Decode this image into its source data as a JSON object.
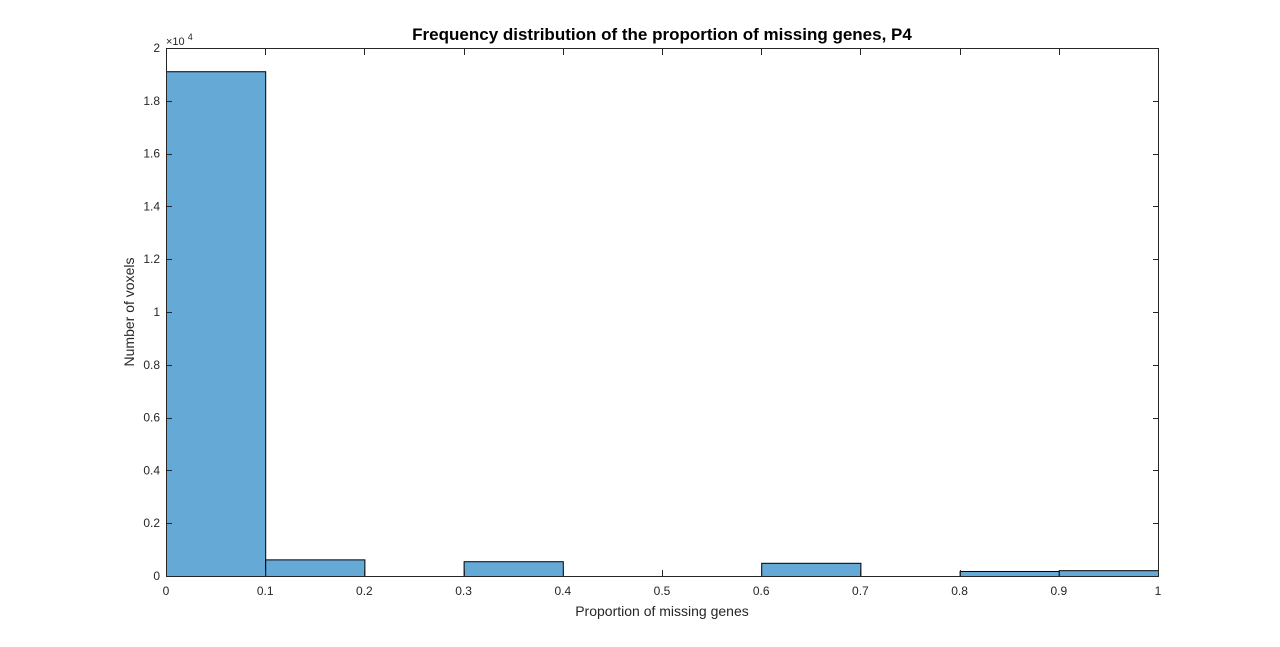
{
  "chart_data": {
    "type": "bar",
    "title": "Frequency distribution of the proportion of missing genes, P4",
    "xlabel": "Proportion of missing genes",
    "ylabel": "Number of voxels",
    "y_exponent_label": "×10",
    "y_exponent_power": "4",
    "xlim": [
      0,
      1
    ],
    "ylim": [
      0,
      20000
    ],
    "bar_color": "#65a9d7",
    "bar_edge_color": "#000000",
    "grid": false,
    "x_ticks": [
      {
        "value": 0,
        "label": "0"
      },
      {
        "value": 0.1,
        "label": "0.1"
      },
      {
        "value": 0.2,
        "label": "0.2"
      },
      {
        "value": 0.3,
        "label": "0.3"
      },
      {
        "value": 0.4,
        "label": "0.4"
      },
      {
        "value": 0.5,
        "label": "0.5"
      },
      {
        "value": 0.6,
        "label": "0.6"
      },
      {
        "value": 0.7,
        "label": "0.7"
      },
      {
        "value": 0.8,
        "label": "0.8"
      },
      {
        "value": 0.9,
        "label": "0.9"
      },
      {
        "value": 1,
        "label": "1"
      }
    ],
    "y_ticks": [
      {
        "value": 0,
        "label": "0"
      },
      {
        "value": 2000,
        "label": "0.2"
      },
      {
        "value": 4000,
        "label": "0.4"
      },
      {
        "value": 6000,
        "label": "0.6"
      },
      {
        "value": 8000,
        "label": "0.8"
      },
      {
        "value": 10000,
        "label": "1"
      },
      {
        "value": 12000,
        "label": "1.2"
      },
      {
        "value": 14000,
        "label": "1.4"
      },
      {
        "value": 16000,
        "label": "1.6"
      },
      {
        "value": 18000,
        "label": "1.8"
      },
      {
        "value": 20000,
        "label": "2"
      }
    ],
    "bins": [
      {
        "x0": 0.0,
        "x1": 0.1,
        "value": 19120
      },
      {
        "x0": 0.1,
        "x1": 0.2,
        "value": 630
      },
      {
        "x0": 0.2,
        "x1": 0.3,
        "value": 0
      },
      {
        "x0": 0.3,
        "x1": 0.4,
        "value": 560
      },
      {
        "x0": 0.4,
        "x1": 0.5,
        "value": 0
      },
      {
        "x0": 0.5,
        "x1": 0.6,
        "value": 0
      },
      {
        "x0": 0.6,
        "x1": 0.7,
        "value": 500
      },
      {
        "x0": 0.7,
        "x1": 0.8,
        "value": 0
      },
      {
        "x0": 0.8,
        "x1": 0.9,
        "value": 190
      },
      {
        "x0": 0.9,
        "x1": 1.0,
        "value": 220
      }
    ]
  }
}
